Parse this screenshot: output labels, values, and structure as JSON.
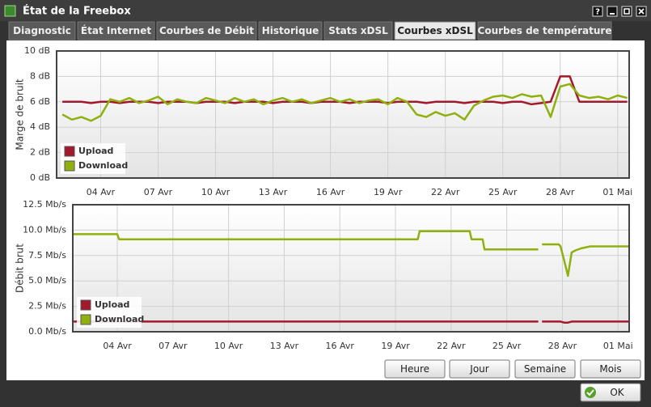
{
  "window": {
    "title": "État de la Freebox",
    "tabs": [
      "Diagnostic",
      "État Internet",
      "Courbes de Débit",
      "Historique",
      "Stats xDSL",
      "Courbes xDSL",
      "Courbes de température"
    ],
    "active_tab": 5,
    "range_buttons": [
      "Heure",
      "Jour",
      "Semaine",
      "Mois"
    ],
    "ok_button": "OK"
  },
  "chart_data": [
    {
      "type": "line",
      "ylabel": "Marge de bruit",
      "legend": "lower left",
      "grid": true,
      "xlim": [
        1.7,
        31.6
      ],
      "ylim": [
        0,
        10
      ],
      "xticks": [
        {
          "value": 4,
          "label": "04 Avr"
        },
        {
          "value": 7,
          "label": "07 Avr"
        },
        {
          "value": 10,
          "label": "10 Avr"
        },
        {
          "value": 13,
          "label": "13 Avr"
        },
        {
          "value": 16,
          "label": "16 Avr"
        },
        {
          "value": 19,
          "label": "19 Avr"
        },
        {
          "value": 22,
          "label": "22 Avr"
        },
        {
          "value": 25,
          "label": "25 Avr"
        },
        {
          "value": 28,
          "label": "28 Avr"
        },
        {
          "value": 31,
          "label": "01 Mai"
        }
      ],
      "yticks": [
        {
          "value": 0,
          "label": "0 dB"
        },
        {
          "value": 2,
          "label": "2 dB"
        },
        {
          "value": 4,
          "label": "4 dB"
        },
        {
          "value": 6,
          "label": "6 dB"
        },
        {
          "value": 8,
          "label": "8 dB"
        },
        {
          "value": 10,
          "label": "10 dB"
        }
      ],
      "x": [
        2,
        2.5,
        3,
        3.5,
        4,
        4.5,
        5,
        5.5,
        6,
        6.5,
        7,
        7.5,
        8,
        8.5,
        9,
        9.5,
        10,
        10.5,
        11,
        11.5,
        12,
        12.5,
        13,
        13.5,
        14,
        14.5,
        15,
        15.5,
        16,
        16.5,
        17,
        17.5,
        18,
        18.5,
        19,
        19.5,
        20,
        20.5,
        21,
        21.5,
        22,
        22.5,
        23,
        23.5,
        24,
        24.5,
        25,
        25.5,
        26,
        26.5,
        27,
        27.5,
        28,
        28.5,
        29,
        29.5,
        30,
        30.5,
        31,
        31.5
      ],
      "series": [
        {
          "name": "Upload",
          "color": "#a3182b",
          "values": [
            6.0,
            6.0,
            6.0,
            5.9,
            6.0,
            6.0,
            5.9,
            6.0,
            6.0,
            6.0,
            5.9,
            6.0,
            6.0,
            6.0,
            5.9,
            6.0,
            6.0,
            6.0,
            5.9,
            6.0,
            6.0,
            6.0,
            5.9,
            6.0,
            6.0,
            6.0,
            5.9,
            6.0,
            6.0,
            6.0,
            5.9,
            6.0,
            6.0,
            6.0,
            5.9,
            6.0,
            6.0,
            6.0,
            5.9,
            6.0,
            6.0,
            6.0,
            5.9,
            6.0,
            6.0,
            6.0,
            5.9,
            6.0,
            6.0,
            5.8,
            5.9,
            6.0,
            8.0,
            8.0,
            6.0,
            6.0,
            6.0,
            6.0,
            6.0,
            6.0
          ]
        },
        {
          "name": "Download",
          "color": "#8fb00f",
          "values": [
            5.0,
            4.6,
            4.8,
            4.5,
            4.9,
            6.2,
            6.0,
            6.3,
            5.9,
            6.1,
            6.4,
            5.8,
            6.2,
            6.0,
            5.9,
            6.3,
            6.1,
            5.9,
            6.3,
            6.0,
            6.2,
            5.8,
            6.1,
            6.3,
            6.0,
            6.2,
            5.9,
            6.1,
            6.3,
            6.0,
            6.2,
            5.9,
            6.1,
            6.2,
            5.8,
            6.3,
            6.0,
            5.0,
            4.8,
            5.2,
            4.9,
            5.1,
            4.6,
            5.7,
            6.1,
            6.4,
            6.5,
            6.3,
            6.6,
            6.4,
            6.5,
            4.8,
            7.2,
            7.4,
            6.5,
            6.3,
            6.4,
            6.2,
            6.5,
            6.3
          ]
        }
      ]
    },
    {
      "type": "line",
      "ylabel": "Débit brut",
      "legend": "lower left",
      "grid": true,
      "xlim": [
        1.6,
        31.6
      ],
      "ylim": [
        0,
        12.5
      ],
      "xticks": [
        {
          "value": 4,
          "label": "04 Avr"
        },
        {
          "value": 7,
          "label": "07 Avr"
        },
        {
          "value": 10,
          "label": "10 Avr"
        },
        {
          "value": 13,
          "label": "13 Avr"
        },
        {
          "value": 16,
          "label": "16 Avr"
        },
        {
          "value": 19,
          "label": "19 Avr"
        },
        {
          "value": 22,
          "label": "22 Avr"
        },
        {
          "value": 25,
          "label": "25 Avr"
        },
        {
          "value": 28,
          "label": "28 Avr"
        },
        {
          "value": 31,
          "label": "01 Mai"
        }
      ],
      "yticks": [
        {
          "value": 0,
          "label": "0.0 Mb/s"
        },
        {
          "value": 2.5,
          "label": "2.5 Mb/s"
        },
        {
          "value": 5,
          "label": "5.0 Mb/s"
        },
        {
          "value": 7.5,
          "label": "7.5 Mb/s"
        },
        {
          "value": 10,
          "label": "10.0 Mb/s"
        },
        {
          "value": 12.5,
          "label": "12.5 Mb/s"
        }
      ],
      "x": [
        1.6,
        4.0,
        4.1,
        20.2,
        20.3,
        23.0,
        23.1,
        23.7,
        23.8,
        26.7,
        26.8,
        26.9,
        27.8,
        27.9,
        28.1,
        28.3,
        28.5,
        28.7,
        29.0,
        29.5,
        31.6
      ],
      "series": [
        {
          "name": "Upload",
          "color": "#a3182b",
          "values": [
            1.0,
            1.0,
            1.0,
            1.0,
            1.0,
            1.0,
            1.0,
            1.0,
            1.0,
            1.0,
            null,
            1.0,
            1.0,
            1.0,
            0.9,
            0.9,
            1.0,
            1.0,
            1.0,
            1.0,
            1.0
          ]
        },
        {
          "name": "Download",
          "color": "#8fb00f",
          "values": [
            9.6,
            9.6,
            9.1,
            9.1,
            9.9,
            9.9,
            9.1,
            9.1,
            8.1,
            8.1,
            null,
            8.6,
            8.6,
            8.4,
            7.0,
            5.5,
            7.8,
            8.0,
            8.2,
            8.4,
            8.4
          ]
        }
      ]
    }
  ]
}
